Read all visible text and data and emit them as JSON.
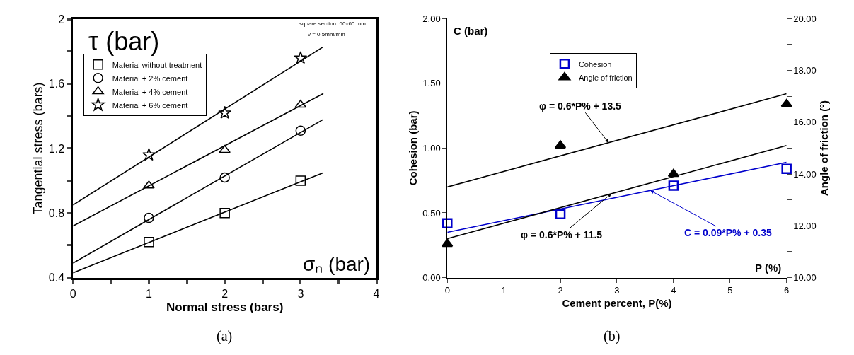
{
  "chart_data": [
    {
      "type": "scatter",
      "xlabel": "Normal stress (bars)",
      "ylabel": "Tangential stress (bars)",
      "xlim": [
        0,
        4
      ],
      "ylim": [
        0.4,
        2
      ],
      "xticks": [
        0,
        {
          "value": 0.5,
          "label": null
        },
        1,
        {
          "value": 1.5,
          "label": null
        },
        2,
        {
          "value": 2.5,
          "label": null
        },
        3,
        {
          "value": 3.5,
          "label": null
        },
        4
      ],
      "yticks": [
        0.4,
        {
          "value": 0.6,
          "label": null
        },
        0.8,
        {
          "value": 1.0,
          "label": null
        },
        1.2,
        {
          "value": 1.4,
          "label": null
        },
        1.6,
        {
          "value": 1.8,
          "label": null
        },
        2
      ],
      "legend": "top left",
      "series": [
        {
          "name": "Material without treatment",
          "color": "#000000",
          "marker": "square",
          "x": [
            1,
            2,
            3
          ],
          "values": [
            0.62,
            0.8,
            1.0
          ]
        },
        {
          "name": "Material + 2% cement",
          "color": "#000000",
          "marker": "circle",
          "x": [
            1,
            2,
            3
          ],
          "values": [
            0.77,
            1.02,
            1.31
          ]
        },
        {
          "name": "Material + 4% cement",
          "color": "#000000",
          "marker": "triangle",
          "x": [
            1,
            2,
            3
          ],
          "values": [
            0.97,
            1.19,
            1.47
          ]
        },
        {
          "name": "Material + 6% cement",
          "color": "#000000",
          "marker": "star",
          "x": [
            1,
            2,
            3
          ],
          "values": [
            1.16,
            1.42,
            1.76
          ]
        },
        {
          "type": "line",
          "color": "#000000",
          "x": [
            0,
            3.3
          ],
          "values": [
            0.43,
            1.05
          ]
        },
        {
          "type": "line",
          "color": "#000000",
          "x": [
            0,
            3.3
          ],
          "values": [
            0.49,
            1.38
          ]
        },
        {
          "type": "line",
          "color": "#000000",
          "x": [
            0,
            3.3
          ],
          "values": [
            0.72,
            1.54
          ]
        },
        {
          "type": "line",
          "color": "#000000",
          "x": [
            0,
            3.3
          ],
          "values": [
            0.85,
            1.83
          ]
        }
      ],
      "annotations": [
        "τ (bar)",
        "σₙ (bar)",
        "square section  60x60 mm",
        "v = 0.5mm/min",
        "(a)"
      ]
    },
    {
      "type": "scatter",
      "xlabel": "Cement percent, P(%)",
      "ylabel": "Cohesion (bar)",
      "y2label": "Angle of friction (°)",
      "xlim": [
        0,
        6
      ],
      "ylim": [
        0,
        2
      ],
      "y2lim": [
        10,
        20
      ],
      "xticks": [
        0,
        1,
        2,
        3,
        4,
        5,
        6
      ],
      "yticks": [
        {
          "value": 0,
          "label": "0.00"
        },
        {
          "value": 0.5,
          "label": "0.50"
        },
        {
          "value": 1,
          "label": "1.00"
        },
        {
          "value": 1.5,
          "label": "1.50"
        },
        {
          "value": 2,
          "label": "2.00"
        }
      ],
      "y2ticks": [
        {
          "value": 10,
          "label": "10.00"
        },
        {
          "value": 11,
          "label": null
        },
        {
          "value": 12,
          "label": "12.00"
        },
        {
          "value": 13,
          "label": null
        },
        {
          "value": 14,
          "label": "14.00"
        },
        {
          "value": 15,
          "label": null
        },
        {
          "value": 16,
          "label": "16.00"
        },
        {
          "value": 17,
          "label": null
        },
        {
          "value": 18,
          "label": "18.00"
        },
        {
          "value": 19,
          "label": null
        },
        {
          "value": 20,
          "label": "20.00"
        }
      ],
      "legend": "top",
      "series": [
        {
          "name": "Cohesion",
          "color": "#0000cc",
          "marker": "square",
          "x": [
            0,
            2,
            4,
            6
          ],
          "values": [
            0.42,
            0.49,
            0.71,
            0.84
          ]
        },
        {
          "name": "Angle of friction",
          "color": "#000000",
          "marker": "triangle",
          "axis": "y2",
          "x": [
            0,
            2,
            4,
            6
          ],
          "values": [
            11.3,
            15.1,
            14.0,
            16.7
          ]
        },
        {
          "type": "line",
          "color": "#0000cc",
          "x": [
            0,
            6
          ],
          "values": [
            0.35,
            0.89
          ]
        },
        {
          "type": "line",
          "color": "#000000",
          "axis": "y2",
          "x": [
            0,
            6
          ],
          "values": [
            13.5,
            17.1
          ]
        },
        {
          "type": "line",
          "color": "#000000",
          "axis": "y2",
          "x": [
            0,
            6
          ],
          "values": [
            11.5,
            15.1
          ]
        }
      ],
      "annotations": [
        "C (bar)",
        "P (%)",
        {
          "text": "φ = 0.6*P% + 13.5",
          "x": 2.85,
          "y": 1.042
        },
        {
          "text": "φ = 0.6*P% + 11.5",
          "x": 2.9,
          "y": 0.648
        },
        {
          "text": "C = 0.09*P% + 0.35",
          "x": 3.59,
          "y": 0.673
        },
        "(b)"
      ]
    }
  ]
}
